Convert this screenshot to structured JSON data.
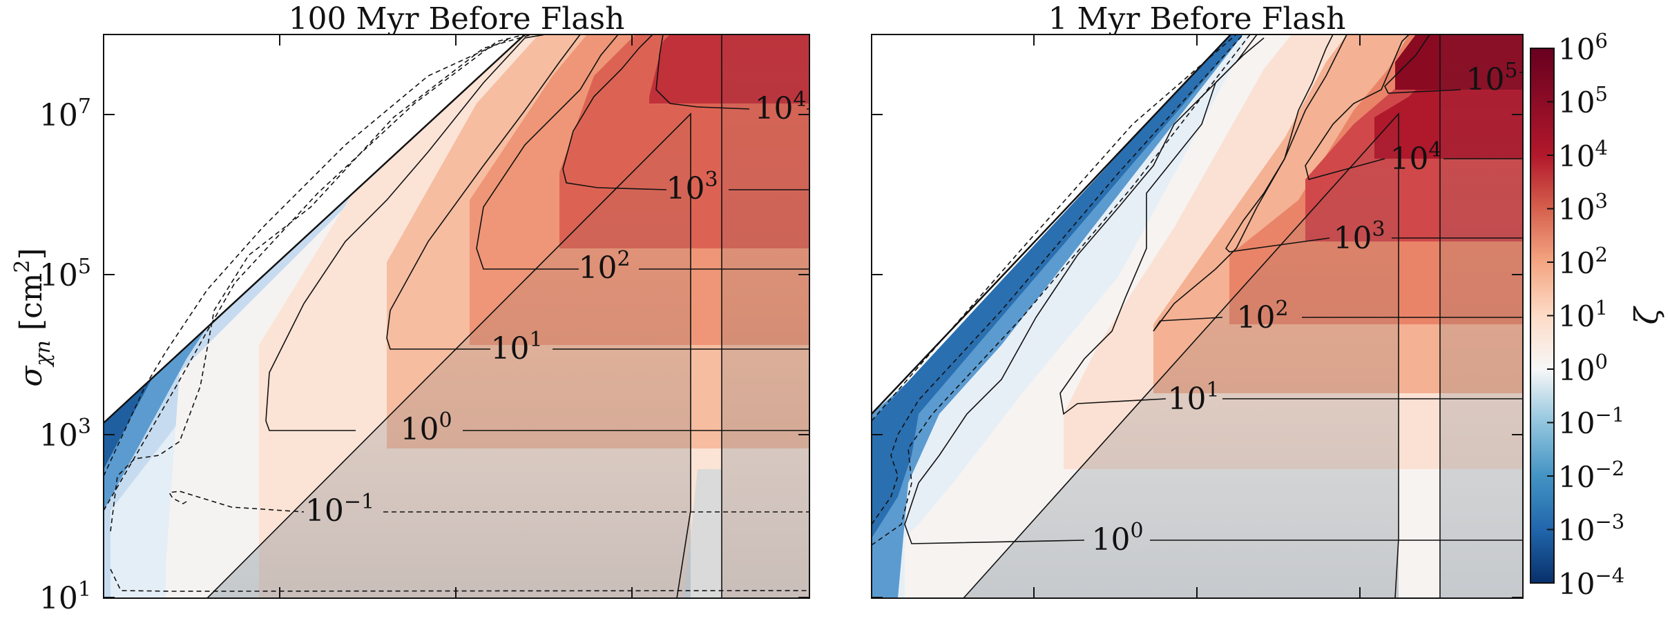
{
  "chart_data": [
    {
      "type": "heatmap",
      "title": "100 Myr Before Flash",
      "ylabel_main": "σ",
      "ylabel_sub": "χn",
      "ylabel_unit_open": " [cm",
      "ylabel_unit_exp": "2",
      "ylabel_unit_close": "]",
      "y_scale": "log",
      "ylim": [
        10,
        100000000
      ],
      "y_ticks": [
        {
          "value": 10,
          "base": "10",
          "exp": "1"
        },
        {
          "value": 1000,
          "base": "10",
          "exp": "3"
        },
        {
          "value": 100000,
          "base": "10",
          "exp": "5"
        },
        {
          "value": 10000000,
          "base": "10",
          "exp": "7"
        }
      ],
      "x_ticks_count": 4,
      "contour_labels": [
        {
          "base": "10",
          "exp": "4",
          "level": 4
        },
        {
          "base": "10",
          "exp": "3",
          "level": 3
        },
        {
          "base": "10",
          "exp": "2",
          "level": 2
        },
        {
          "base": "10",
          "exp": "1",
          "level": 1
        },
        {
          "base": "10",
          "exp": "0",
          "level": 0
        },
        {
          "base": "10",
          "exp": "−1",
          "level": -1
        }
      ]
    },
    {
      "type": "heatmap",
      "title": "1 Myr Before Flash",
      "y_scale": "log",
      "ylim": [
        10,
        100000000
      ],
      "x_ticks_count": 4,
      "contour_labels": [
        {
          "base": "10",
          "exp": "5",
          "level": 5
        },
        {
          "base": "10",
          "exp": "4",
          "level": 4
        },
        {
          "base": "10",
          "exp": "3",
          "level": 3
        },
        {
          "base": "10",
          "exp": "2",
          "level": 2
        },
        {
          "base": "10",
          "exp": "1",
          "level": 1
        },
        {
          "base": "10",
          "exp": "0",
          "level": 0
        }
      ]
    }
  ],
  "colorbar": {
    "label": "ζ",
    "scale": "log",
    "range": [
      0.0001,
      1000000
    ],
    "colormap": "RdBu_r",
    "colors": [
      "#08306b",
      "#2166ac",
      "#4393c3",
      "#92c5de",
      "#f7f7f7",
      "#fddbc7",
      "#f4a582",
      "#d6604d",
      "#b2182b",
      "#67001f"
    ],
    "ticks": [
      {
        "base": "10",
        "exp": "6"
      },
      {
        "base": "10",
        "exp": "5"
      },
      {
        "base": "10",
        "exp": "4"
      },
      {
        "base": "10",
        "exp": "3"
      },
      {
        "base": "10",
        "exp": "2"
      },
      {
        "base": "10",
        "exp": "1"
      },
      {
        "base": "10",
        "exp": "0"
      },
      {
        "base": "10",
        "exp": "−1"
      },
      {
        "base": "10",
        "exp": "−2"
      },
      {
        "base": "10",
        "exp": "−3"
      },
      {
        "base": "10",
        "exp": "−4"
      }
    ]
  }
}
